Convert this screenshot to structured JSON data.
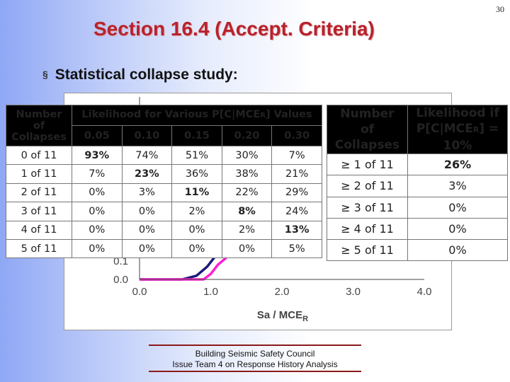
{
  "page_number": "30",
  "title": "Section 16.4 (Accept. Criteria)",
  "bullet": {
    "marker": "§",
    "text": "Statistical collapse study:"
  },
  "chart_data": {
    "type": "line",
    "xlabel": "Sa / MCE",
    "xlabel_sub": "R",
    "x_ticks": [
      "0.0",
      "1.0",
      "2.0",
      "3.0",
      "4.0"
    ],
    "y_ticks": [
      "0.0",
      "0.1"
    ],
    "xlim": [
      0,
      4
    ],
    "ylim": [
      0,
      1
    ],
    "series": [
      {
        "color": "#1b1b7a",
        "x": [
          0.0,
          0.6,
          0.8,
          0.95,
          1.05
        ],
        "values": [
          0.0,
          0.0,
          0.02,
          0.07,
          0.12
        ]
      },
      {
        "color": "#ff1fd1",
        "x": [
          0.0,
          0.9,
          1.0,
          1.1,
          1.22
        ],
        "values": [
          0.0,
          0.0,
          0.03,
          0.08,
          0.12
        ]
      }
    ]
  },
  "table1": {
    "col1_header": [
      "Number",
      "of",
      "Collapses"
    ],
    "group_header_prefix": "Likelihood for Various P[C|MCE",
    "group_header_sub": "R",
    "group_header_suffix": "] Values",
    "probabilities": [
      "0.05",
      "0.10",
      "0.15",
      "0.20",
      "0.30"
    ],
    "rows": [
      {
        "label": "0 of 11",
        "values": [
          "93%",
          "74%",
          "51%",
          "30%",
          "7%"
        ]
      },
      {
        "label": "1 of 11",
        "values": [
          "7%",
          "23%",
          "36%",
          "38%",
          "21%"
        ]
      },
      {
        "label": "2 of 11",
        "values": [
          "0%",
          "3%",
          "11%",
          "22%",
          "29%"
        ]
      },
      {
        "label": "3 of 11",
        "values": [
          "0%",
          "0%",
          "2%",
          "8%",
          "24%"
        ]
      },
      {
        "label": "4 of 11",
        "values": [
          "0%",
          "0%",
          "0%",
          "2%",
          "13%"
        ]
      },
      {
        "label": "5 of 11",
        "values": [
          "0%",
          "0%",
          "0%",
          "0%",
          "5%"
        ]
      }
    ]
  },
  "table2": {
    "col1_header": [
      "Number",
      "of",
      "Collapses"
    ],
    "col2_header_line1": "Likelihood if",
    "col2_header_prefix": "P[C|MCE",
    "col2_header_sub": "R",
    "col2_header_suffix": "] =",
    "col2_header_line3": "10%",
    "rows": [
      {
        "label": "≥ 1 of 11",
        "value": "26%"
      },
      {
        "label": "≥ 2 of 11",
        "value": "3%"
      },
      {
        "label": "≥ 3 of 11",
        "value": "0%"
      },
      {
        "label": "≥ 4 of 11",
        "value": "0%"
      },
      {
        "label": "≥ 5 of 11",
        "value": "0%"
      }
    ]
  },
  "footer": {
    "line1": "Building Seismic Safety Council",
    "line2": "Issue Team 4 on Response History Analysis"
  }
}
